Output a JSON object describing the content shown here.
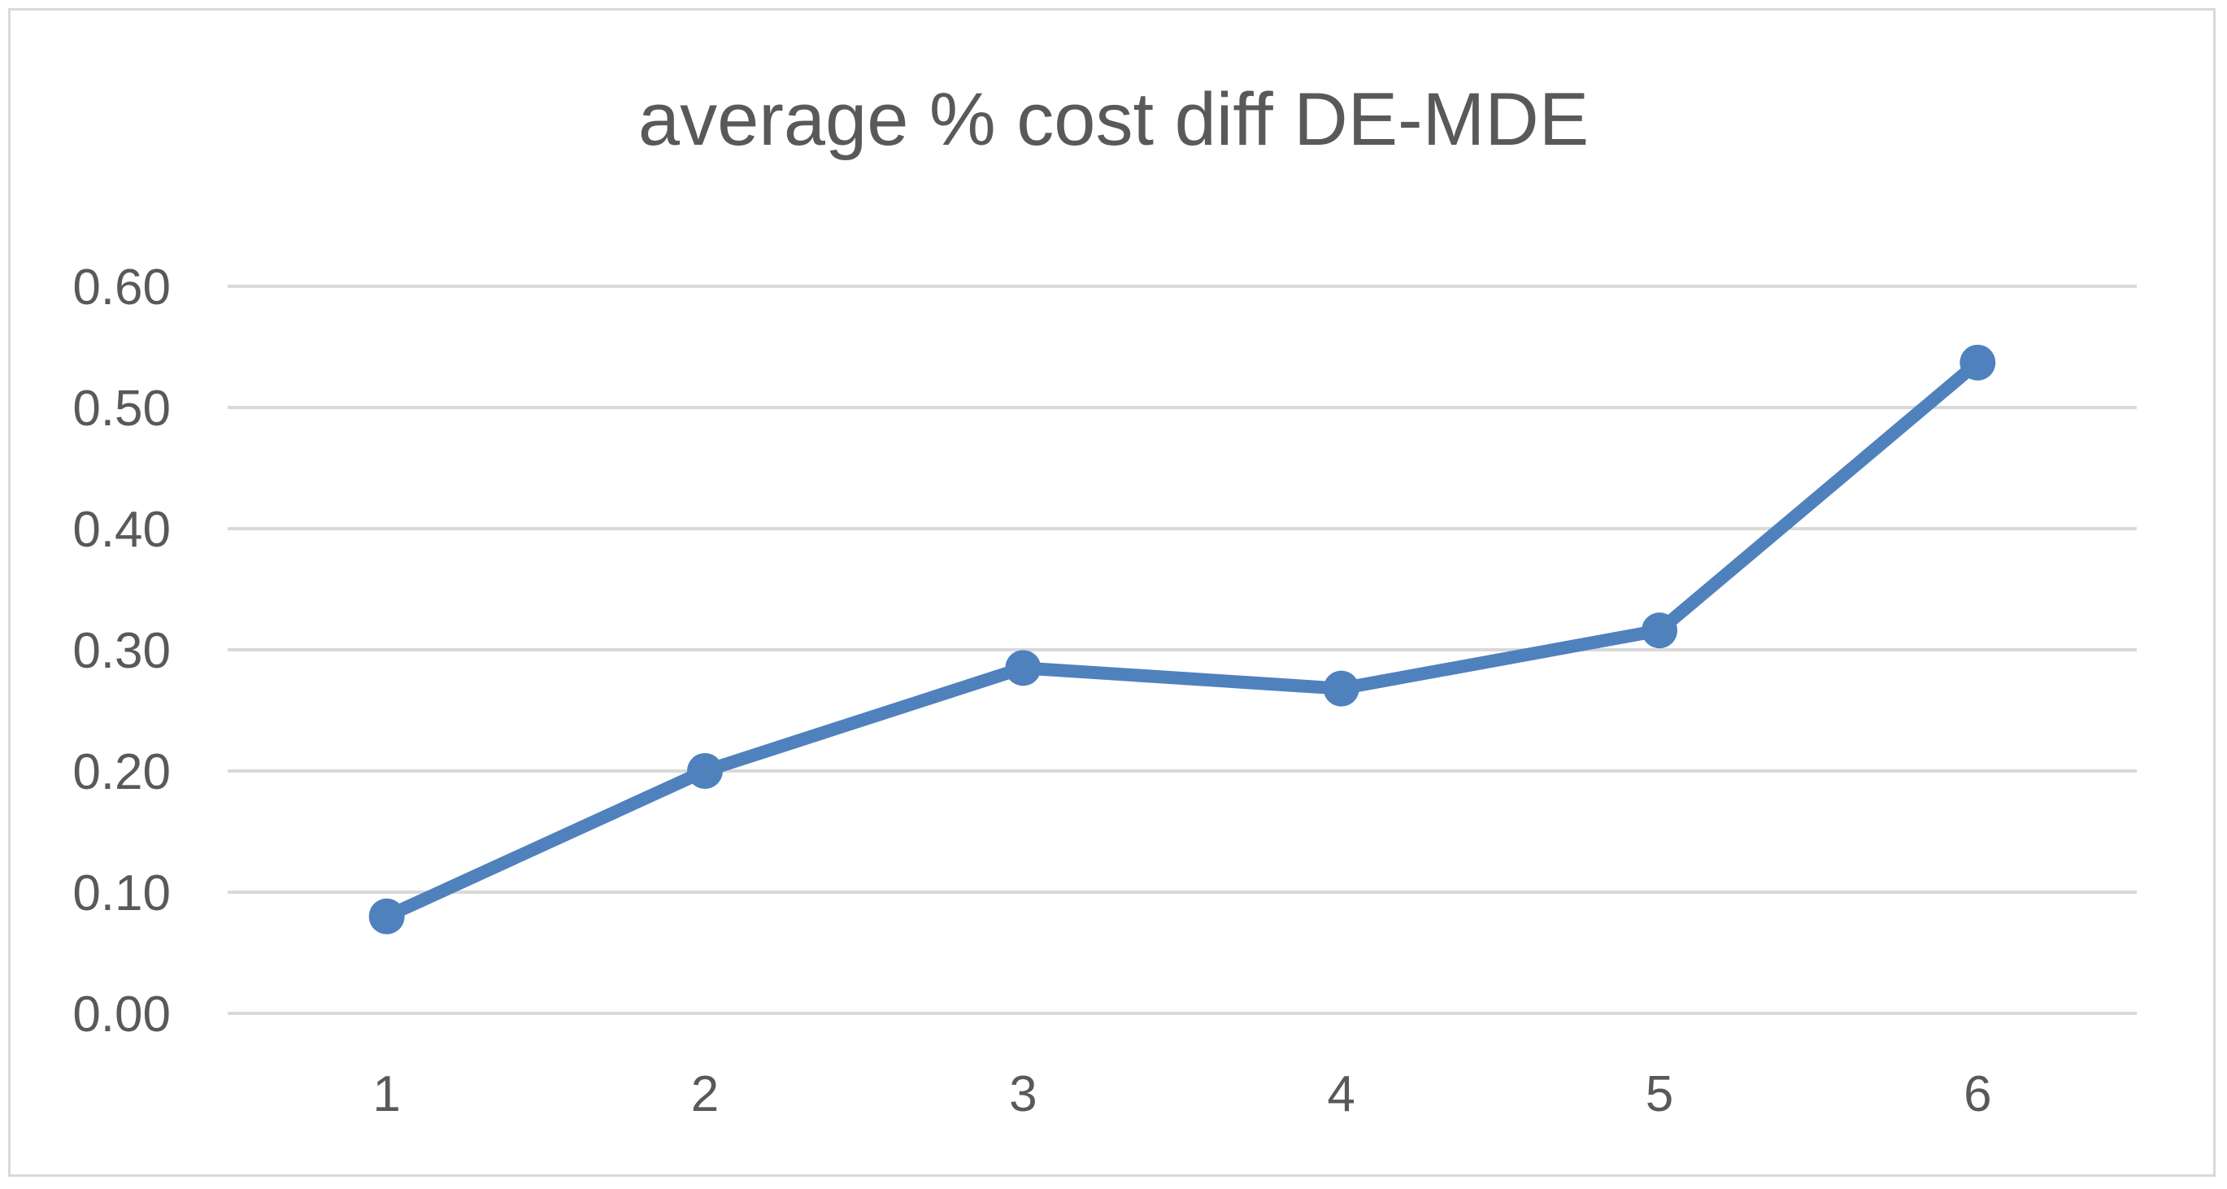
{
  "chart_data": {
    "type": "line",
    "title": "average % cost diff DE-MDE",
    "xlabel": "",
    "ylabel": "",
    "categories": [
      "1",
      "2",
      "3",
      "4",
      "5",
      "6"
    ],
    "series": [
      {
        "values": [
          0.08,
          0.2,
          0.285,
          0.268,
          0.316,
          0.537
        ]
      }
    ],
    "ylim": [
      0,
      0.6
    ],
    "yticks": [
      "0.00",
      "0.10",
      "0.20",
      "0.30",
      "0.40",
      "0.50",
      "0.60"
    ],
    "grid": true,
    "legend": "none",
    "colors": {
      "series": "#4f81bd",
      "grid": "#d9d9d9",
      "text": "#595959",
      "border": "#d9d9d9"
    }
  }
}
